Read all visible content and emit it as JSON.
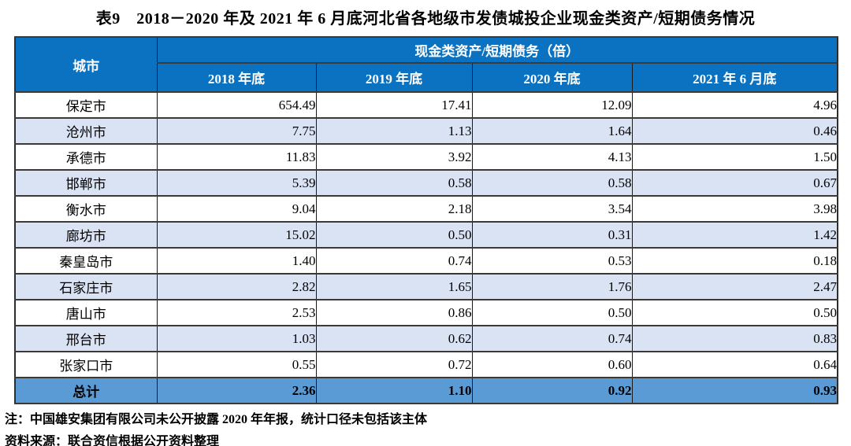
{
  "title": "表9　2018－2020 年及 2021 年 6 月底河北省各地级市发债城投企业现金类资产/短期债务情况",
  "table": {
    "corner_header": "城市",
    "group_header": "现金类资产/短期债务（倍）",
    "column_headers": [
      "2018 年底",
      "2019 年底",
      "2020 年底",
      "2021 年 6 月底"
    ],
    "rows": [
      {
        "city": "保定市",
        "values": [
          "654.49",
          "17.41",
          "12.09",
          "4.96"
        ]
      },
      {
        "city": "沧州市",
        "values": [
          "7.75",
          "1.13",
          "1.64",
          "0.46"
        ]
      },
      {
        "city": "承德市",
        "values": [
          "11.83",
          "3.92",
          "4.13",
          "1.50"
        ]
      },
      {
        "city": "邯郸市",
        "values": [
          "5.39",
          "0.58",
          "0.58",
          "0.67"
        ]
      },
      {
        "city": "衡水市",
        "values": [
          "9.04",
          "2.18",
          "3.54",
          "3.98"
        ]
      },
      {
        "city": "廊坊市",
        "values": [
          "15.02",
          "0.50",
          "0.31",
          "1.42"
        ]
      },
      {
        "city": "秦皇岛市",
        "values": [
          "1.40",
          "0.74",
          "0.53",
          "0.18"
        ]
      },
      {
        "city": "石家庄市",
        "values": [
          "2.82",
          "1.65",
          "1.76",
          "2.47"
        ]
      },
      {
        "city": "唐山市",
        "values": [
          "2.53",
          "0.86",
          "0.50",
          "0.50"
        ]
      },
      {
        "city": "邢台市",
        "values": [
          "1.03",
          "0.62",
          "0.74",
          "0.83"
        ]
      },
      {
        "city": "张家口市",
        "values": [
          "0.55",
          "0.72",
          "0.60",
          "0.64"
        ]
      }
    ],
    "total_row": {
      "city": "总计",
      "values": [
        "2.36",
        "1.10",
        "0.92",
        "0.93"
      ]
    }
  },
  "notes": {
    "footnote": "注：中国雄安集团有限公司未公开披露 2020 年年报，统计口径未包括该主体",
    "source": "资料来源：联合资信根据公开资料整理"
  },
  "colors": {
    "header_bg": "#0b72c1",
    "header_text": "#ffffff",
    "zebra_bg": "#dae3f3",
    "total_bg": "#5b9bd5",
    "border": "#2e2e2e"
  }
}
